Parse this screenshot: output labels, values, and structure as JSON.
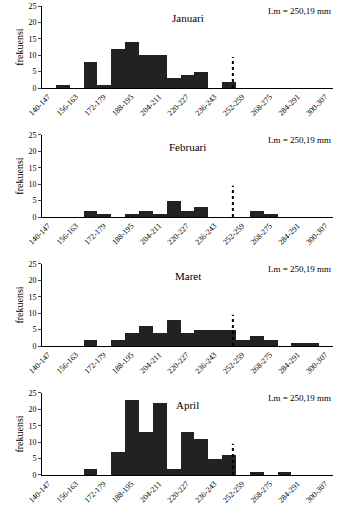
{
  "chart_data": [
    {
      "type": "histogram",
      "title": "Januari",
      "y_label": "frekuensi",
      "annotation": "Lm = 250,19 mm",
      "reference_line": 250.19,
      "line_style": "dotted",
      "color": "#222222",
      "bins": [
        140,
        148,
        156,
        164,
        172,
        180,
        188,
        196,
        204,
        212,
        220,
        228,
        236,
        244,
        252,
        260,
        268,
        276,
        284,
        292,
        300,
        308
      ],
      "values": [
        0,
        1,
        0,
        8,
        1,
        12,
        14,
        10,
        10,
        3,
        4,
        5,
        0,
        2,
        0,
        0,
        0,
        0,
        0,
        0,
        0
      ],
      "xlim": [
        140,
        308
      ],
      "xticks": [
        {
          "value": 143.5,
          "label": "140-147"
        },
        {
          "value": 159.5,
          "label": "156-163"
        },
        {
          "value": 175.5,
          "label": "172-179"
        },
        {
          "value": 191.5,
          "label": "188-195"
        },
        {
          "value": 207.5,
          "label": "204-211"
        },
        {
          "value": 223.5,
          "label": "220-227"
        },
        {
          "value": 239.5,
          "label": "236-243"
        },
        {
          "value": 255.5,
          "label": "252-259"
        },
        {
          "value": 271.5,
          "label": "268-275"
        },
        {
          "value": 287.5,
          "label": "284-291"
        },
        {
          "value": 303.5,
          "label": "300-307"
        }
      ],
      "ylim": [
        0,
        25
      ],
      "yticks": [
        0,
        5,
        10,
        15,
        20,
        25
      ]
    },
    {
      "type": "histogram",
      "title": "Februari",
      "y_label": "frekuensi",
      "annotation": "Lm = 250,19 mm",
      "reference_line": 250.19,
      "line_style": "dotted",
      "color": "#222222",
      "bins": [
        140,
        148,
        156,
        164,
        172,
        180,
        188,
        196,
        204,
        212,
        220,
        228,
        236,
        244,
        252,
        260,
        268,
        276,
        284,
        292,
        300,
        308
      ],
      "values": [
        0,
        0,
        0,
        2,
        1,
        0,
        1,
        2,
        1,
        5,
        2,
        3,
        0,
        0,
        0,
        2,
        1,
        0,
        0,
        0,
        0
      ],
      "xlim": [
        140,
        308
      ],
      "xticks": [
        {
          "value": 143.5,
          "label": "140-147"
        },
        {
          "value": 159.5,
          "label": "156-163"
        },
        {
          "value": 175.5,
          "label": "172-179"
        },
        {
          "value": 191.5,
          "label": "188-195"
        },
        {
          "value": 207.5,
          "label": "204-211"
        },
        {
          "value": 223.5,
          "label": "220-227"
        },
        {
          "value": 239.5,
          "label": "236-243"
        },
        {
          "value": 255.5,
          "label": "252-259"
        },
        {
          "value": 271.5,
          "label": "268-275"
        },
        {
          "value": 287.5,
          "label": "284-291"
        },
        {
          "value": 303.5,
          "label": "300-307"
        }
      ],
      "ylim": [
        0,
        25
      ],
      "yticks": [
        0,
        5,
        10,
        15,
        20,
        25
      ]
    },
    {
      "type": "histogram",
      "title": "Maret",
      "y_label": "frekuensi",
      "annotation": "Lm = 250,19 mm",
      "reference_line": 250.19,
      "line_style": "dotted",
      "color": "#222222",
      "bins": [
        140,
        148,
        156,
        164,
        172,
        180,
        188,
        196,
        204,
        212,
        220,
        228,
        236,
        244,
        252,
        260,
        268,
        276,
        284,
        292,
        300,
        308
      ],
      "values": [
        0,
        0,
        0,
        2,
        0,
        2,
        4,
        6,
        4,
        8,
        4,
        5,
        5,
        5,
        2,
        3,
        2,
        0,
        1,
        1,
        0
      ],
      "xlim": [
        140,
        308
      ],
      "xticks": [
        {
          "value": 143.5,
          "label": "140-147"
        },
        {
          "value": 159.5,
          "label": "156-163"
        },
        {
          "value": 175.5,
          "label": "172-179"
        },
        {
          "value": 191.5,
          "label": "188-195"
        },
        {
          "value": 207.5,
          "label": "204-211"
        },
        {
          "value": 223.5,
          "label": "220-227"
        },
        {
          "value": 239.5,
          "label": "236-243"
        },
        {
          "value": 255.5,
          "label": "252-259"
        },
        {
          "value": 271.5,
          "label": "268-275"
        },
        {
          "value": 287.5,
          "label": "284-291"
        },
        {
          "value": 303.5,
          "label": "300-307"
        }
      ],
      "ylim": [
        0,
        25
      ],
      "yticks": [
        0,
        5,
        10,
        15,
        20,
        25
      ]
    },
    {
      "type": "histogram",
      "title": "April",
      "y_label": "frekuensi",
      "annotation": "Lm = 250,19 mm",
      "reference_line": 250.19,
      "line_style": "dotted",
      "color": "#222222",
      "bins": [
        140,
        148,
        156,
        164,
        172,
        180,
        188,
        196,
        204,
        212,
        220,
        228,
        236,
        244,
        252,
        260,
        268,
        276,
        284,
        292,
        300,
        308
      ],
      "values": [
        0,
        0,
        0,
        2,
        0,
        7,
        23,
        13,
        22,
        2,
        13,
        11,
        5,
        6,
        0,
        1,
        0,
        1,
        0,
        0,
        0
      ],
      "xlim": [
        140,
        308
      ],
      "xticks": [
        {
          "value": 143.5,
          "label": "140-147"
        },
        {
          "value": 159.5,
          "label": "156-163"
        },
        {
          "value": 175.5,
          "label": "172-179"
        },
        {
          "value": 191.5,
          "label": "188-195"
        },
        {
          "value": 207.5,
          "label": "204-211"
        },
        {
          "value": 223.5,
          "label": "220-227"
        },
        {
          "value": 239.5,
          "label": "236-243"
        },
        {
          "value": 255.5,
          "label": "252-259"
        },
        {
          "value": 271.5,
          "label": "268-275"
        },
        {
          "value": 287.5,
          "label": "284-291"
        },
        {
          "value": 303.5,
          "label": "300-307"
        }
      ],
      "ylim": [
        0,
        25
      ],
      "yticks": [
        0,
        5,
        10,
        15,
        20,
        25
      ]
    }
  ]
}
